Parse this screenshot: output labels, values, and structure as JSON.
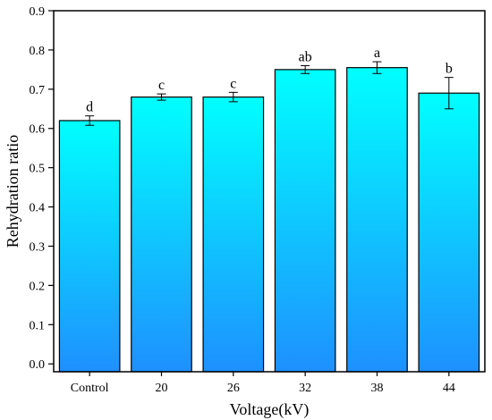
{
  "chart_data": {
    "type": "bar",
    "categories": [
      "Control",
      "20",
      "26",
      "32",
      "38",
      "44"
    ],
    "values": [
      0.62,
      0.68,
      0.68,
      0.75,
      0.755,
      0.69
    ],
    "errors": [
      0.012,
      0.008,
      0.012,
      0.01,
      0.015,
      0.04
    ],
    "significance_labels": [
      "d",
      "c",
      "c",
      "ab",
      "a",
      "b"
    ],
    "xlabel": "Voltage(kV)",
    "ylabel": "Rehydration ratio",
    "ylim": [
      -0.02,
      0.9
    ],
    "yticks": [
      "0.0",
      "0.1",
      "0.2",
      "0.3",
      "0.4",
      "0.5",
      "0.6",
      "0.7",
      "0.8",
      "0.9"
    ],
    "ytick_values": [
      0,
      0.1,
      0.2,
      0.3,
      0.4,
      0.5,
      0.6,
      0.7,
      0.8,
      0.9
    ],
    "grid": false,
    "bar_gradient_colors": [
      "#00ffff",
      "#1e90ff"
    ]
  }
}
